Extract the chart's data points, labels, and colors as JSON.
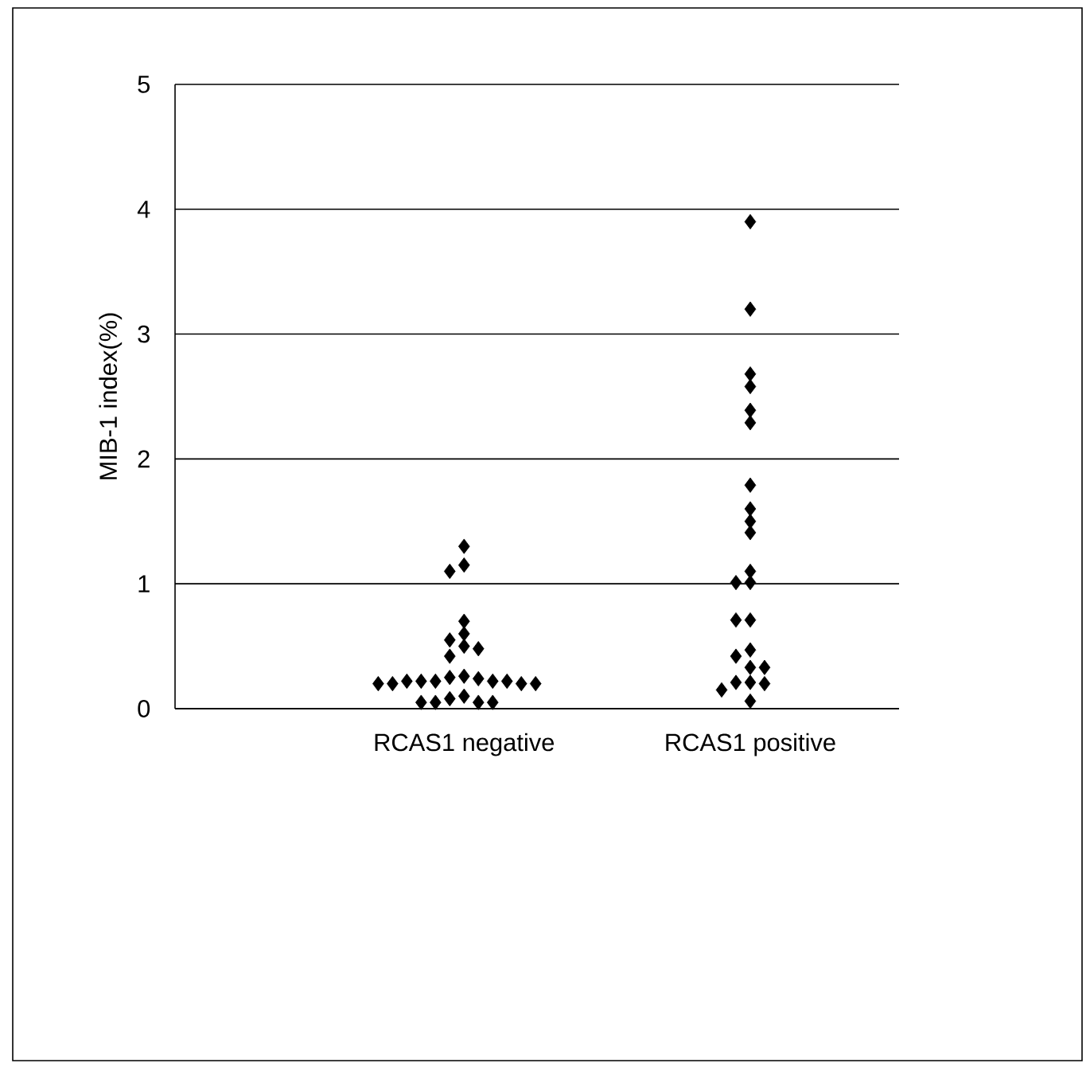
{
  "chart_data": {
    "type": "scatter",
    "ylabel": "MIB-1 index(%)",
    "categories": [
      "RCAS1 negative",
      "RCAS1 positive"
    ],
    "series": [
      {
        "color": "#000000",
        "x": [
          "RCAS1 negative",
          "RCAS1 negative",
          "RCAS1 negative",
          "RCAS1 negative",
          "RCAS1 negative",
          "RCAS1 negative",
          "RCAS1 negative",
          "RCAS1 negative",
          "RCAS1 negative",
          "RCAS1 negative",
          "RCAS1 negative",
          "RCAS1 negative",
          "RCAS1 negative",
          "RCAS1 negative",
          "RCAS1 negative",
          "RCAS1 negative",
          "RCAS1 negative",
          "RCAS1 negative",
          "RCAS1 negative",
          "RCAS1 negative",
          "RCAS1 negative",
          "RCAS1 negative",
          "RCAS1 negative",
          "RCAS1 negative",
          "RCAS1 negative",
          "RCAS1 negative",
          "RCAS1 negative"
        ],
        "values": [
          1.3,
          1.15,
          1.1,
          0.7,
          0.6,
          0.55,
          0.5,
          0.48,
          0.42,
          0.26,
          0.25,
          0.24,
          0.22,
          0.22,
          0.22,
          0.22,
          0.22,
          0.2,
          0.2,
          0.2,
          0.2,
          0.1,
          0.08,
          0.05,
          0.05,
          0.05,
          0.05
        ]
      },
      {
        "color": "#000000",
        "x": [
          "RCAS1 positive",
          "RCAS1 positive",
          "RCAS1 positive",
          "RCAS1 positive",
          "RCAS1 positive",
          "RCAS1 positive",
          "RCAS1 positive",
          "RCAS1 positive",
          "RCAS1 positive",
          "RCAS1 positive",
          "RCAS1 positive",
          "RCAS1 positive",
          "RCAS1 positive",
          "RCAS1 positive",
          "RCAS1 positive",
          "RCAS1 positive",
          "RCAS1 positive",
          "RCAS1 positive",
          "RCAS1 positive",
          "RCAS1 positive",
          "RCAS1 positive",
          "RCAS1 positive",
          "RCAS1 positive",
          "RCAS1 positive"
        ],
        "values": [
          3.9,
          3.2,
          2.68,
          2.58,
          2.39,
          2.29,
          1.79,
          1.6,
          1.5,
          1.41,
          1.1,
          1.01,
          1.01,
          0.71,
          0.71,
          0.47,
          0.42,
          0.33,
          0.33,
          0.21,
          0.21,
          0.2,
          0.15,
          0.06
        ]
      }
    ],
    "ylim": [
      0,
      5
    ],
    "yticks": [
      0,
      1,
      2,
      3,
      4,
      5
    ],
    "grid": "y",
    "marker": "diamond"
  }
}
